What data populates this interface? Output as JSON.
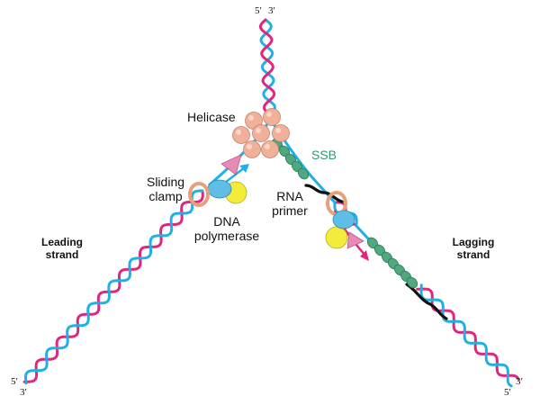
{
  "labels": {
    "helicase": "Helicase",
    "ssb": "SSB",
    "sliding_clamp_line1": "Sliding",
    "sliding_clamp_line2": "clamp",
    "dna_polymerase_line1": "DNA",
    "dna_polymerase_line2": "polymerase",
    "rna_primer_line1": "RNA",
    "rna_primer_line2": "primer",
    "leading_strand_line1": "Leading",
    "leading_strand_line2": "strand",
    "lagging_strand_line1": "Lagging",
    "lagging_strand_line2": "strand"
  },
  "strand_ends": {
    "top_left": "5′",
    "top_right": "3′",
    "bottom_left_upper": "5′",
    "bottom_left_lower": "3′",
    "bottom_right_upper": "3′",
    "bottom_right_lower": "5′"
  },
  "colors": {
    "strand_magenta": "#e0267e",
    "strand_cyan": "#1fb0e6",
    "primer_black": "#111111",
    "helicase_fill": "#f0b09a",
    "ssb_fill": "#4fa87e",
    "clamp_ring": "#e8a07c",
    "polymerase_blue": "#5fbde6",
    "polymerase_yellow": "#f3ec3a",
    "polymerase_pink": "#e98ab6",
    "ssb_label": "#2e9a6e"
  }
}
